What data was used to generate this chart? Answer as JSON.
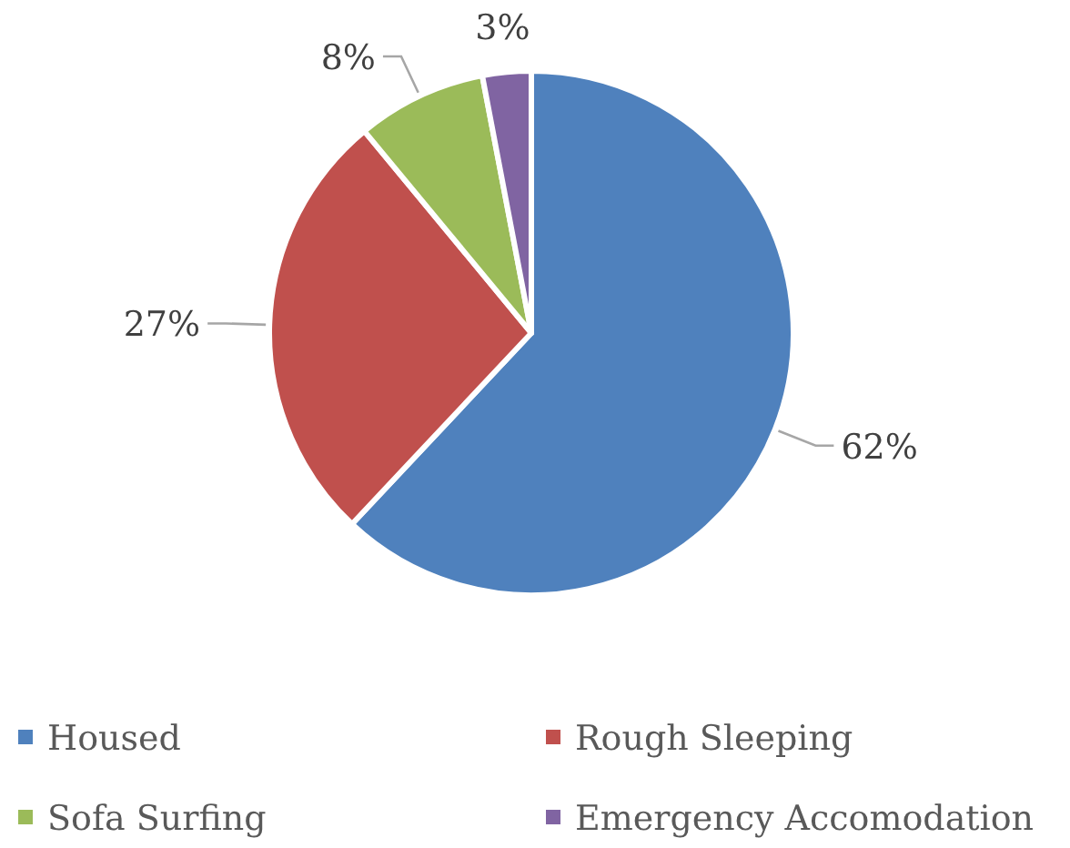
{
  "chart_data": {
    "type": "pie",
    "categories": [
      "Housed",
      "Rough Sleeping",
      "Sofa Surfing",
      "Emergency Accomodation"
    ],
    "values": [
      62,
      27,
      8,
      3
    ],
    "colors": [
      "#4f81bd",
      "#c0504d",
      "#9bbb59",
      "#8064a2"
    ],
    "value_labels": [
      "62%",
      "27%",
      "8%",
      "3%"
    ],
    "legend": "bottom"
  }
}
